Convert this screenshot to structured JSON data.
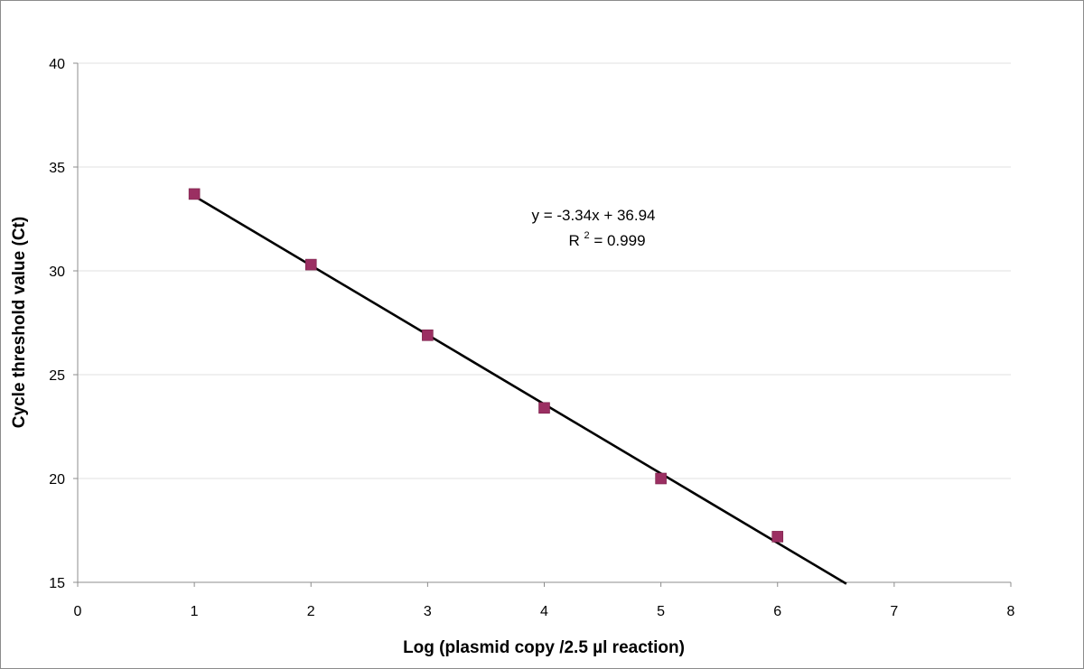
{
  "chart_data": {
    "type": "scatter",
    "title": "",
    "xlabel": "Log (plasmid copy /2.5 µl reaction)",
    "ylabel": "Cycle threshold value (Ct)",
    "xlim": [
      0,
      8
    ],
    "ylim": [
      15,
      40
    ],
    "x_ticks": [
      "0",
      "1",
      "2",
      "3",
      "4",
      "5",
      "6",
      "7",
      "8"
    ],
    "y_ticks": [
      "15",
      "20",
      "25",
      "30",
      "35",
      "40"
    ],
    "grid": "horizontal",
    "legend": "none",
    "series": [
      {
        "x": [
          1,
          2,
          3,
          4,
          5,
          6
        ],
        "y": [
          33.7,
          30.3,
          26.9,
          23.4,
          20.0,
          17.2
        ],
        "marker": "square",
        "color": "#9b2f62"
      }
    ],
    "trendline": {
      "slope": -3.34,
      "intercept": 36.94,
      "x_range": [
        1,
        6.59
      ],
      "color": "#000000"
    },
    "annotation": {
      "equation": "y = -3.34x + 36.94",
      "r2_prefix": "R",
      "r2_exponent": "2",
      "r2_value": " = 0.999"
    }
  }
}
